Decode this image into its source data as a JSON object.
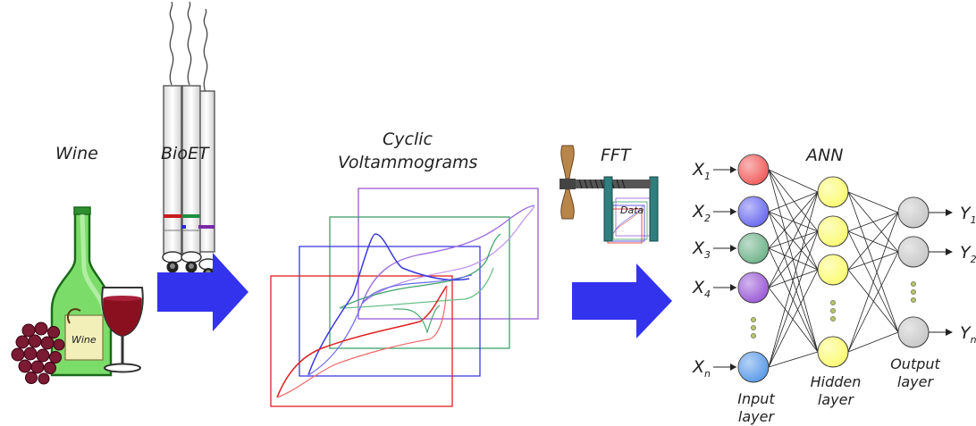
{
  "labels": {
    "wine": "Wine",
    "bioet": "BioET",
    "cyclic": "Cyclic",
    "voltammograms": "Voltammograms",
    "fft": "FFT",
    "data": "Data",
    "ann": "ANN",
    "bottle_label": "Wine"
  },
  "network": {
    "input_nodes": [
      {
        "base": "X",
        "sub": "1",
        "color": "#f25c5c"
      },
      {
        "base": "X",
        "sub": "2",
        "color": "#6a6af0"
      },
      {
        "base": "X",
        "sub": "3",
        "color": "#6fb38a"
      },
      {
        "base": "X",
        "sub": "4",
        "color": "#9a5ad6"
      },
      {
        "base": "X",
        "sub": "n",
        "color": "#5a9ae8"
      }
    ],
    "output_nodes": [
      {
        "base": "Y",
        "sub": "1"
      },
      {
        "base": "Y",
        "sub": "2"
      },
      {
        "base": "Y",
        "sub": "n"
      }
    ],
    "hidden_color": "#fbfb72",
    "output_color": "#c8c8c8",
    "input_layer": [
      "Input",
      "layer"
    ],
    "hidden_layer": [
      "Hidden",
      "layer"
    ],
    "output_layer": [
      "Output",
      "layer"
    ]
  },
  "colors": {
    "arrow": "#3333ee",
    "bottle": "#7cdc6a",
    "wine": "#8a1020",
    "grapes": "#7a1a33",
    "cv_red": "#e02020",
    "cv_blue": "#3a3ae0",
    "cv_green": "#3fa06a",
    "cv_purple": "#9a5ad6"
  }
}
